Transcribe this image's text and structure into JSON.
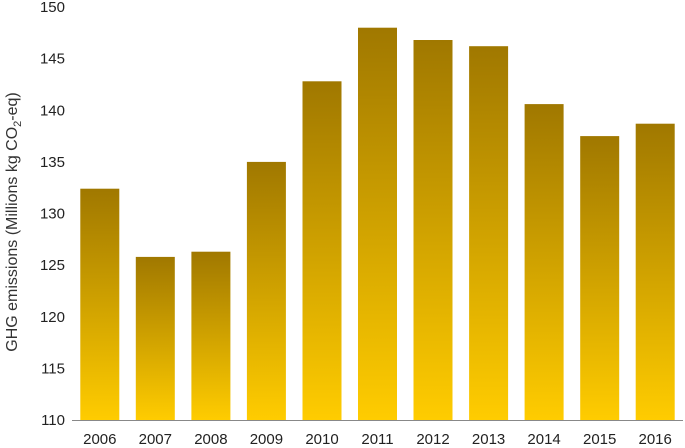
{
  "chart_data": {
    "type": "bar",
    "categories": [
      "2006",
      "2007",
      "2008",
      "2009",
      "2010",
      "2011",
      "2012",
      "2013",
      "2014",
      "2015",
      "2016"
    ],
    "values": [
      132.4,
      125.8,
      126.3,
      135.0,
      142.8,
      148.0,
      146.8,
      146.2,
      140.6,
      137.5,
      138.7
    ],
    "title": "",
    "xlabel": "",
    "ylabel": {
      "before": "GHG emissions (Millions kg CO",
      "sub": "2",
      "after": "-eq)"
    },
    "ylim": [
      110,
      150
    ],
    "yticks": [
      "110",
      "115",
      "120",
      "125",
      "130",
      "135",
      "140",
      "145",
      "150"
    ],
    "grid": false,
    "legend": "none",
    "colors": {
      "bar_top": "#A07800",
      "bar_bottom": "#FFCC00",
      "axis": "#888888"
    }
  }
}
